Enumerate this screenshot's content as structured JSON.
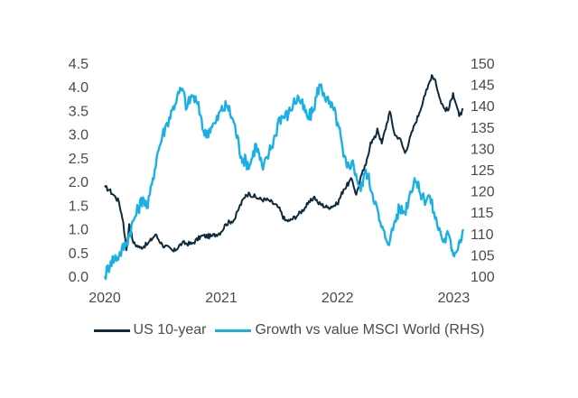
{
  "chart_data": {
    "type": "line",
    "title": "",
    "xlabel": "",
    "ylabel": "",
    "y2label": "",
    "x_ticks": [
      "2020",
      "2021",
      "2022",
      "2023"
    ],
    "x_range": [
      "2020-01-01",
      "2023-01-31"
    ],
    "y_left_ticks": [
      "0.0",
      "0.5",
      "1.0",
      "1.5",
      "2.0",
      "2.5",
      "3.0",
      "3.5",
      "4.0",
      "4.5"
    ],
    "y_left_range": [
      0,
      4.5
    ],
    "y_right_ticks": [
      "100",
      "105",
      "110",
      "115",
      "120",
      "125",
      "130",
      "135",
      "140",
      "145",
      "150"
    ],
    "y_right_range": [
      100,
      150
    ],
    "grid": false,
    "legend_position": "bottom",
    "series": [
      {
        "name": "US 10-year",
        "axis": "left",
        "color": "#0f2a3c",
        "points": [
          [
            "2020-01-01",
            1.88
          ],
          [
            "2020-01-15",
            1.82
          ],
          [
            "2020-01-31",
            1.7
          ],
          [
            "2020-02-14",
            1.58
          ],
          [
            "2020-02-28",
            1.15
          ],
          [
            "2020-03-09",
            0.55
          ],
          [
            "2020-03-18",
            1.1
          ],
          [
            "2020-03-31",
            0.7
          ],
          [
            "2020-04-20",
            0.6
          ],
          [
            "2020-05-15",
            0.68
          ],
          [
            "2020-06-08",
            0.88
          ],
          [
            "2020-06-30",
            0.66
          ],
          [
            "2020-07-31",
            0.55
          ],
          [
            "2020-08-04",
            0.52
          ],
          [
            "2020-08-31",
            0.7
          ],
          [
            "2020-09-30",
            0.68
          ],
          [
            "2020-10-31",
            0.85
          ],
          [
            "2020-11-30",
            0.84
          ],
          [
            "2020-12-31",
            0.93
          ],
          [
            "2021-01-15",
            1.1
          ],
          [
            "2021-02-12",
            1.2
          ],
          [
            "2021-02-26",
            1.45
          ],
          [
            "2021-03-19",
            1.72
          ],
          [
            "2021-03-31",
            1.74
          ],
          [
            "2021-04-30",
            1.63
          ],
          [
            "2021-05-31",
            1.6
          ],
          [
            "2021-06-30",
            1.45
          ],
          [
            "2021-07-20",
            1.18
          ],
          [
            "2021-08-04",
            1.17
          ],
          [
            "2021-08-31",
            1.3
          ],
          [
            "2021-09-30",
            1.52
          ],
          [
            "2021-10-21",
            1.68
          ],
          [
            "2021-10-31",
            1.55
          ],
          [
            "2021-11-30",
            1.45
          ],
          [
            "2021-12-31",
            1.52
          ],
          [
            "2022-01-20",
            1.83
          ],
          [
            "2022-02-15",
            2.05
          ],
          [
            "2022-03-01",
            1.72
          ],
          [
            "2022-03-18",
            2.15
          ],
          [
            "2022-03-31",
            2.35
          ],
          [
            "2022-04-15",
            2.83
          ],
          [
            "2022-04-30",
            2.93
          ],
          [
            "2022-05-06",
            3.12
          ],
          [
            "2022-05-20",
            2.8
          ],
          [
            "2022-06-14",
            3.48
          ],
          [
            "2022-06-30",
            2.98
          ],
          [
            "2022-07-15",
            2.92
          ],
          [
            "2022-08-01",
            2.6
          ],
          [
            "2022-08-31",
            3.2
          ],
          [
            "2022-09-15",
            3.45
          ],
          [
            "2022-09-30",
            3.8
          ],
          [
            "2022-10-10",
            3.95
          ],
          [
            "2022-10-24",
            4.25
          ],
          [
            "2022-11-04",
            4.15
          ],
          [
            "2022-11-17",
            3.77
          ],
          [
            "2022-12-01",
            3.55
          ],
          [
            "2022-12-15",
            3.5
          ],
          [
            "2022-12-30",
            3.87
          ],
          [
            "2023-01-10",
            3.6
          ],
          [
            "2023-01-18",
            3.38
          ],
          [
            "2023-01-31",
            3.52
          ]
        ]
      },
      {
        "name": "Growth vs value MSCI World (RHS)",
        "axis": "right",
        "color": "#1ab0e4",
        "points": [
          [
            "2020-01-01",
            100.0
          ],
          [
            "2020-01-20",
            103.5
          ],
          [
            "2020-02-15",
            105.0
          ],
          [
            "2020-03-10",
            108.0
          ],
          [
            "2020-03-31",
            113.0
          ],
          [
            "2020-04-30",
            118.5
          ],
          [
            "2020-05-15",
            116.0
          ],
          [
            "2020-05-31",
            123.0
          ],
          [
            "2020-06-15",
            129.0
          ],
          [
            "2020-06-30",
            133.0
          ],
          [
            "2020-07-15",
            136.0
          ],
          [
            "2020-07-31",
            139.0
          ],
          [
            "2020-08-15",
            142.0
          ],
          [
            "2020-08-31",
            144.0
          ],
          [
            "2020-09-15",
            139.5
          ],
          [
            "2020-09-30",
            142.5
          ],
          [
            "2020-10-15",
            141.0
          ],
          [
            "2020-10-31",
            137.0
          ],
          [
            "2020-11-09",
            133.0
          ],
          [
            "2020-11-30",
            135.0
          ],
          [
            "2020-12-15",
            136.0
          ],
          [
            "2020-12-31",
            139.0
          ],
          [
            "2021-01-20",
            140.0
          ],
          [
            "2021-02-10",
            136.0
          ],
          [
            "2021-03-05",
            128.0
          ],
          [
            "2021-03-31",
            126.0
          ],
          [
            "2021-04-20",
            131.0
          ],
          [
            "2021-05-12",
            125.0
          ],
          [
            "2021-05-31",
            129.0
          ],
          [
            "2021-06-20",
            133.0
          ],
          [
            "2021-06-30",
            137.0
          ],
          [
            "2021-07-31",
            138.0
          ],
          [
            "2021-08-15",
            140.5
          ],
          [
            "2021-09-01",
            142.0
          ],
          [
            "2021-09-30",
            137.0
          ],
          [
            "2021-10-15",
            138.5
          ],
          [
            "2021-11-05",
            145.0
          ],
          [
            "2021-11-19",
            143.0
          ],
          [
            "2021-12-05",
            140.5
          ],
          [
            "2021-12-20",
            139.0
          ],
          [
            "2022-01-05",
            135.0
          ],
          [
            "2022-01-20",
            128.0
          ],
          [
            "2022-01-31",
            125.5
          ],
          [
            "2022-02-15",
            127.0
          ],
          [
            "2022-02-28",
            124.0
          ],
          [
            "2022-03-15",
            120.0
          ],
          [
            "2022-03-31",
            125.0
          ],
          [
            "2022-04-30",
            117.5
          ],
          [
            "2022-05-12",
            113.0
          ],
          [
            "2022-05-31",
            109.0
          ],
          [
            "2022-06-15",
            108.5
          ],
          [
            "2022-06-30",
            113.0
          ],
          [
            "2022-07-15",
            116.0
          ],
          [
            "2022-07-31",
            115.0
          ],
          [
            "2022-08-15",
            119.0
          ],
          [
            "2022-08-31",
            123.0
          ],
          [
            "2022-09-15",
            120.0
          ],
          [
            "2022-09-30",
            118.0
          ],
          [
            "2022-10-15",
            119.0
          ],
          [
            "2022-10-31",
            115.0
          ],
          [
            "2022-11-10",
            112.0
          ],
          [
            "2022-11-20",
            110.5
          ],
          [
            "2022-11-30",
            108.0
          ],
          [
            "2022-12-15",
            110.0
          ],
          [
            "2022-12-25",
            106.0
          ],
          [
            "2023-01-05",
            105.5
          ],
          [
            "2023-01-20",
            108.5
          ],
          [
            "2023-01-31",
            111.0
          ]
        ]
      }
    ]
  }
}
